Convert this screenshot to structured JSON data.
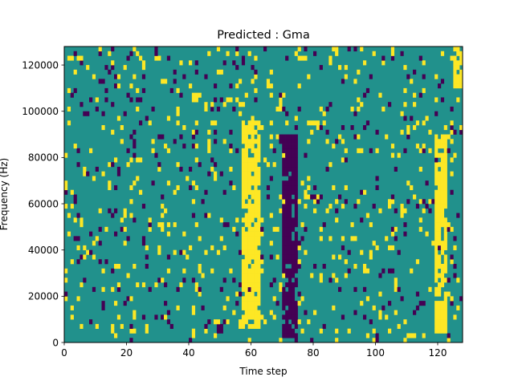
{
  "chart_data": {
    "type": "heatmap",
    "title": "Predicted : Gma",
    "xlabel": "Time step",
    "ylabel": "Frequency (Hz)",
    "xlim": [
      0,
      128
    ],
    "ylim": [
      0,
      128000
    ],
    "x_ticks": [
      0,
      20,
      40,
      60,
      80,
      100,
      120
    ],
    "x_tick_labels": [
      "0",
      "20",
      "40",
      "60",
      "80",
      "100",
      "120"
    ],
    "y_ticks": [
      0,
      20000,
      40000,
      60000,
      80000,
      100000,
      120000
    ],
    "y_tick_labels": [
      "0",
      "20000",
      "40000",
      "60000",
      "80000",
      "100000",
      "120000"
    ],
    "grid": false,
    "legend": "none",
    "colormap": "viridis",
    "value_levels": [
      -1,
      0,
      1
    ],
    "level_colors": {
      "-1": "#440154",
      "0": "#21918c",
      "1": "#fde725"
    },
    "background_value": 0,
    "n_time_steps": 128,
    "n_freq_bins": 64,
    "freq_bin_hz": 2000,
    "features": [
      {
        "label": "broadband positive band",
        "value": 1,
        "t_start": 57,
        "t_end": 63,
        "f_start": 6000,
        "f_end": 96000
      },
      {
        "label": "broadband negative band",
        "value": -1,
        "t_start": 70,
        "t_end": 75,
        "f_start": 2000,
        "f_end": 90000
      },
      {
        "label": "late positive band",
        "value": 1,
        "t_start": 119,
        "t_end": 123,
        "f_start": 4000,
        "f_end": 90000
      },
      {
        "label": "top-right positive patch",
        "value": 1,
        "t_start": 125,
        "t_end": 128,
        "f_start": 110000,
        "f_end": 128000
      }
    ],
    "scatter_density": {
      "positive": 0.07,
      "negative": 0.04
    }
  }
}
